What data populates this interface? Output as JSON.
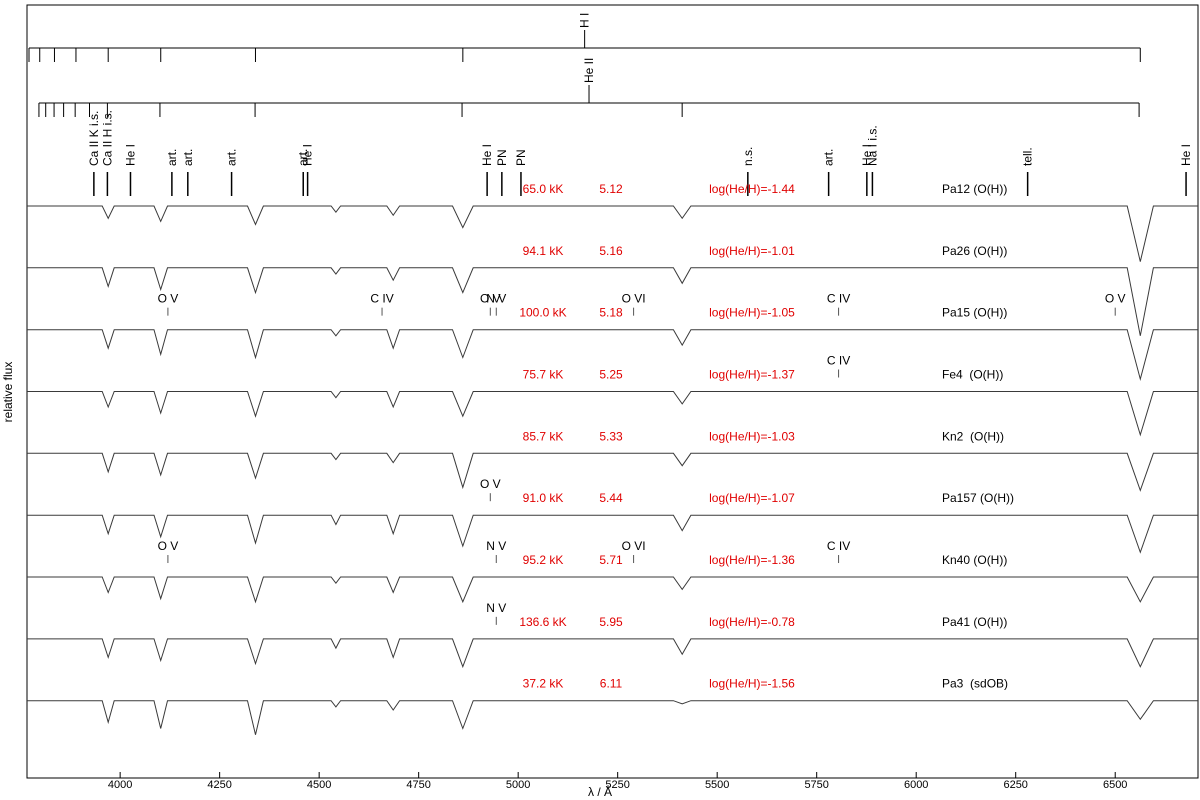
{
  "chart_data": {
    "type": "line",
    "x_label": "λ / Å",
    "y_label": "relative flux",
    "xlim": [
      3766,
      6708
    ],
    "ylim": [
      -0.25,
      12.25
    ],
    "xticks": [
      4000,
      4250,
      4500,
      4750,
      5000,
      5250,
      5500,
      5750,
      6000,
      6250,
      6500
    ],
    "x": [
      3766,
      3955,
      3970,
      3985,
      4085,
      4102,
      4119,
      4320,
      4340,
      4360,
      4530,
      4542,
      4554,
      4670,
      4686,
      4702,
      4835,
      4861,
      4887,
      5390,
      5412,
      5434,
      6530,
      6563,
      6596,
      6708
    ],
    "line_series": [
      {
        "label": "H I",
        "x": [
          3771,
          3798,
          3835,
          3889,
          3970,
          4102,
          4340,
          4861,
          6563
        ]
      },
      {
        "label": "He II",
        "x": [
          3796,
          3813,
          3834,
          3858,
          3887,
          3923,
          3968,
          4100,
          4339,
          4859,
          5412,
          6560
        ]
      }
    ],
    "line_ids": [
      {
        "label": "Ca II K i.s.",
        "x": 3934
      },
      {
        "label": "Ca II H i.s.",
        "x": 3968
      },
      {
        "label": "He I",
        "x": 4026
      },
      {
        "label": "art.",
        "x": 4130
      },
      {
        "label": "art.",
        "x": 4170
      },
      {
        "label": "art.",
        "x": 4280
      },
      {
        "label": "art.",
        "x": 4460
      },
      {
        "label": "He I",
        "x": 4471
      },
      {
        "label": "He I",
        "x": 4922
      },
      {
        "label": "PN",
        "x": 4959
      },
      {
        "label": "PN",
        "x": 5007
      },
      {
        "label": "n.s.",
        "x": 5577
      },
      {
        "label": "art.",
        "x": 5780
      },
      {
        "label": "He I",
        "x": 5876
      },
      {
        "label": "Na I i.s.",
        "x": 5890
      },
      {
        "label": "tell.",
        "x": 6280
      },
      {
        "label": "He I",
        "x": 6678
      }
    ],
    "series": [
      {
        "name": "Pa12 (O(H))",
        "teff": "65.0 kK",
        "logg": "5.12",
        "abundance": "log(He/H)=-1.44",
        "color": "#3a3a3a",
        "label_color": "#e00000",
        "values": [
          9,
          9,
          8.8,
          9,
          9,
          8.75,
          9,
          9,
          8.7,
          9,
          9,
          8.9,
          9,
          9,
          8.85,
          9,
          9,
          8.65,
          9,
          9,
          8.8,
          9,
          9,
          8.1,
          9,
          9
        ],
        "ions": []
      },
      {
        "name": "Pa26 (O(H))",
        "teff": "94.1 kK",
        "logg": "5.16",
        "abundance": "log(He/H)=-1.01",
        "color": "#3a3a3a",
        "label_color": "#e00000",
        "values": [
          8,
          8,
          7.7,
          8,
          8,
          7.65,
          8,
          8,
          7.6,
          8,
          8,
          7.9,
          8,
          8,
          7.8,
          8,
          8,
          7.6,
          8,
          8,
          7.75,
          8,
          8,
          6.9,
          8,
          8
        ],
        "ions": []
      },
      {
        "name": "Pa15 (O(H))",
        "teff": "100.0 kK",
        "logg": "5.18",
        "abundance": "log(He/H)=-1.05",
        "color": "#3a3a3a",
        "label_color": "#e00000",
        "values": [
          7,
          7,
          6.7,
          7,
          7,
          6.6,
          7,
          7,
          6.55,
          7,
          7,
          6.9,
          7,
          7,
          6.7,
          7,
          7,
          6.55,
          7,
          7,
          6.75,
          7,
          7,
          6.2,
          7,
          7
        ],
        "ions": [
          {
            "label": "O V",
            "x": 4120
          },
          {
            "label": "C IV",
            "x": 4658
          },
          {
            "label": "O V",
            "x": 4930
          },
          {
            "label": "N V",
            "x": 4945
          },
          {
            "label": "O VI",
            "x": 5290
          },
          {
            "label": "C IV",
            "x": 5805
          },
          {
            "label": "O V",
            "x": 6500
          }
        ]
      },
      {
        "name": "Fe4  (O(H))",
        "teff": "75.7 kK",
        "logg": "5.25",
        "abundance": "log(He/H)=-1.37",
        "color": "#3a3a3a",
        "label_color": "#e00000",
        "values": [
          6,
          6,
          5.75,
          6,
          6,
          5.65,
          6,
          6,
          5.6,
          6,
          6,
          5.9,
          6,
          6,
          5.75,
          6,
          6,
          5.6,
          6,
          6,
          5.8,
          6,
          6,
          5.3,
          6,
          6
        ],
        "ions": [
          {
            "label": "C IV",
            "x": 5805
          }
        ]
      },
      {
        "name": "Kn2  (O(H))",
        "teff": "85.7 kK",
        "logg": "5.33",
        "abundance": "log(He/H)=-1.03",
        "color": "#3a3a3a",
        "label_color": "#e00000",
        "values": [
          5,
          5,
          4.7,
          5,
          5,
          4.65,
          5,
          5,
          4.6,
          5,
          5,
          4.9,
          5,
          5,
          4.85,
          5,
          5,
          4.45,
          5,
          5,
          4.8,
          5,
          5,
          4.4,
          5,
          5
        ],
        "ions": []
      },
      {
        "name": "Pa157 (O(H))",
        "teff": "91.0 kK",
        "logg": "5.44",
        "abundance": "log(He/H)=-1.07",
        "color": "#3a3a3a",
        "label_color": "#e00000",
        "values": [
          4,
          4,
          3.7,
          4,
          4,
          3.65,
          4,
          4,
          3.55,
          4,
          4,
          3.85,
          4,
          4,
          3.7,
          4,
          4,
          3.5,
          4,
          4,
          3.75,
          4,
          4,
          3.4,
          4,
          4
        ],
        "ions": [
          {
            "label": "O V",
            "x": 4930
          }
        ]
      },
      {
        "name": "Kn40 (O(H))",
        "teff": "95.2 kK",
        "logg": "5.71",
        "abundance": "log(He/H)=-1.36",
        "color": "#3a3a3a",
        "label_color": "#e00000",
        "values": [
          3,
          3,
          2.75,
          3,
          3,
          2.65,
          3,
          3,
          2.6,
          3,
          3,
          2.9,
          3,
          3,
          2.75,
          3,
          3,
          2.6,
          3,
          3,
          2.8,
          3,
          3,
          2.6,
          3,
          3
        ],
        "ions": [
          {
            "label": "O V",
            "x": 4120
          },
          {
            "label": "N V",
            "x": 4945
          },
          {
            "label": "O VI",
            "x": 5290
          },
          {
            "label": "C IV",
            "x": 5805
          }
        ]
      },
      {
        "name": "Pa41 (O(H))",
        "teff": "136.6 kK",
        "logg": "5.95",
        "abundance": "log(He/H)=-0.78",
        "color": "#3a3a3a",
        "label_color": "#e00000",
        "values": [
          2,
          2,
          1.7,
          2,
          2,
          1.65,
          2,
          2,
          1.6,
          2,
          2,
          1.85,
          2,
          2,
          1.7,
          2,
          2,
          1.55,
          2,
          2,
          1.75,
          2,
          2,
          1.55,
          2,
          2
        ],
        "ions": [
          {
            "label": "N V",
            "x": 4945
          }
        ]
      },
      {
        "name": "Pa3  (sdOB)",
        "teff": "37.2 kK",
        "logg": "6.11",
        "abundance": "log(He/H)=-1.56",
        "color": "#3a3a3a",
        "label_color": "#e00000",
        "values": [
          1,
          1,
          0.65,
          1,
          1,
          0.55,
          1,
          1,
          0.45,
          1,
          1,
          0.9,
          1,
          1,
          0.85,
          1,
          1,
          0.55,
          1,
          1,
          0.95,
          1,
          1,
          0.7,
          1,
          1
        ],
        "ions": []
      }
    ]
  }
}
